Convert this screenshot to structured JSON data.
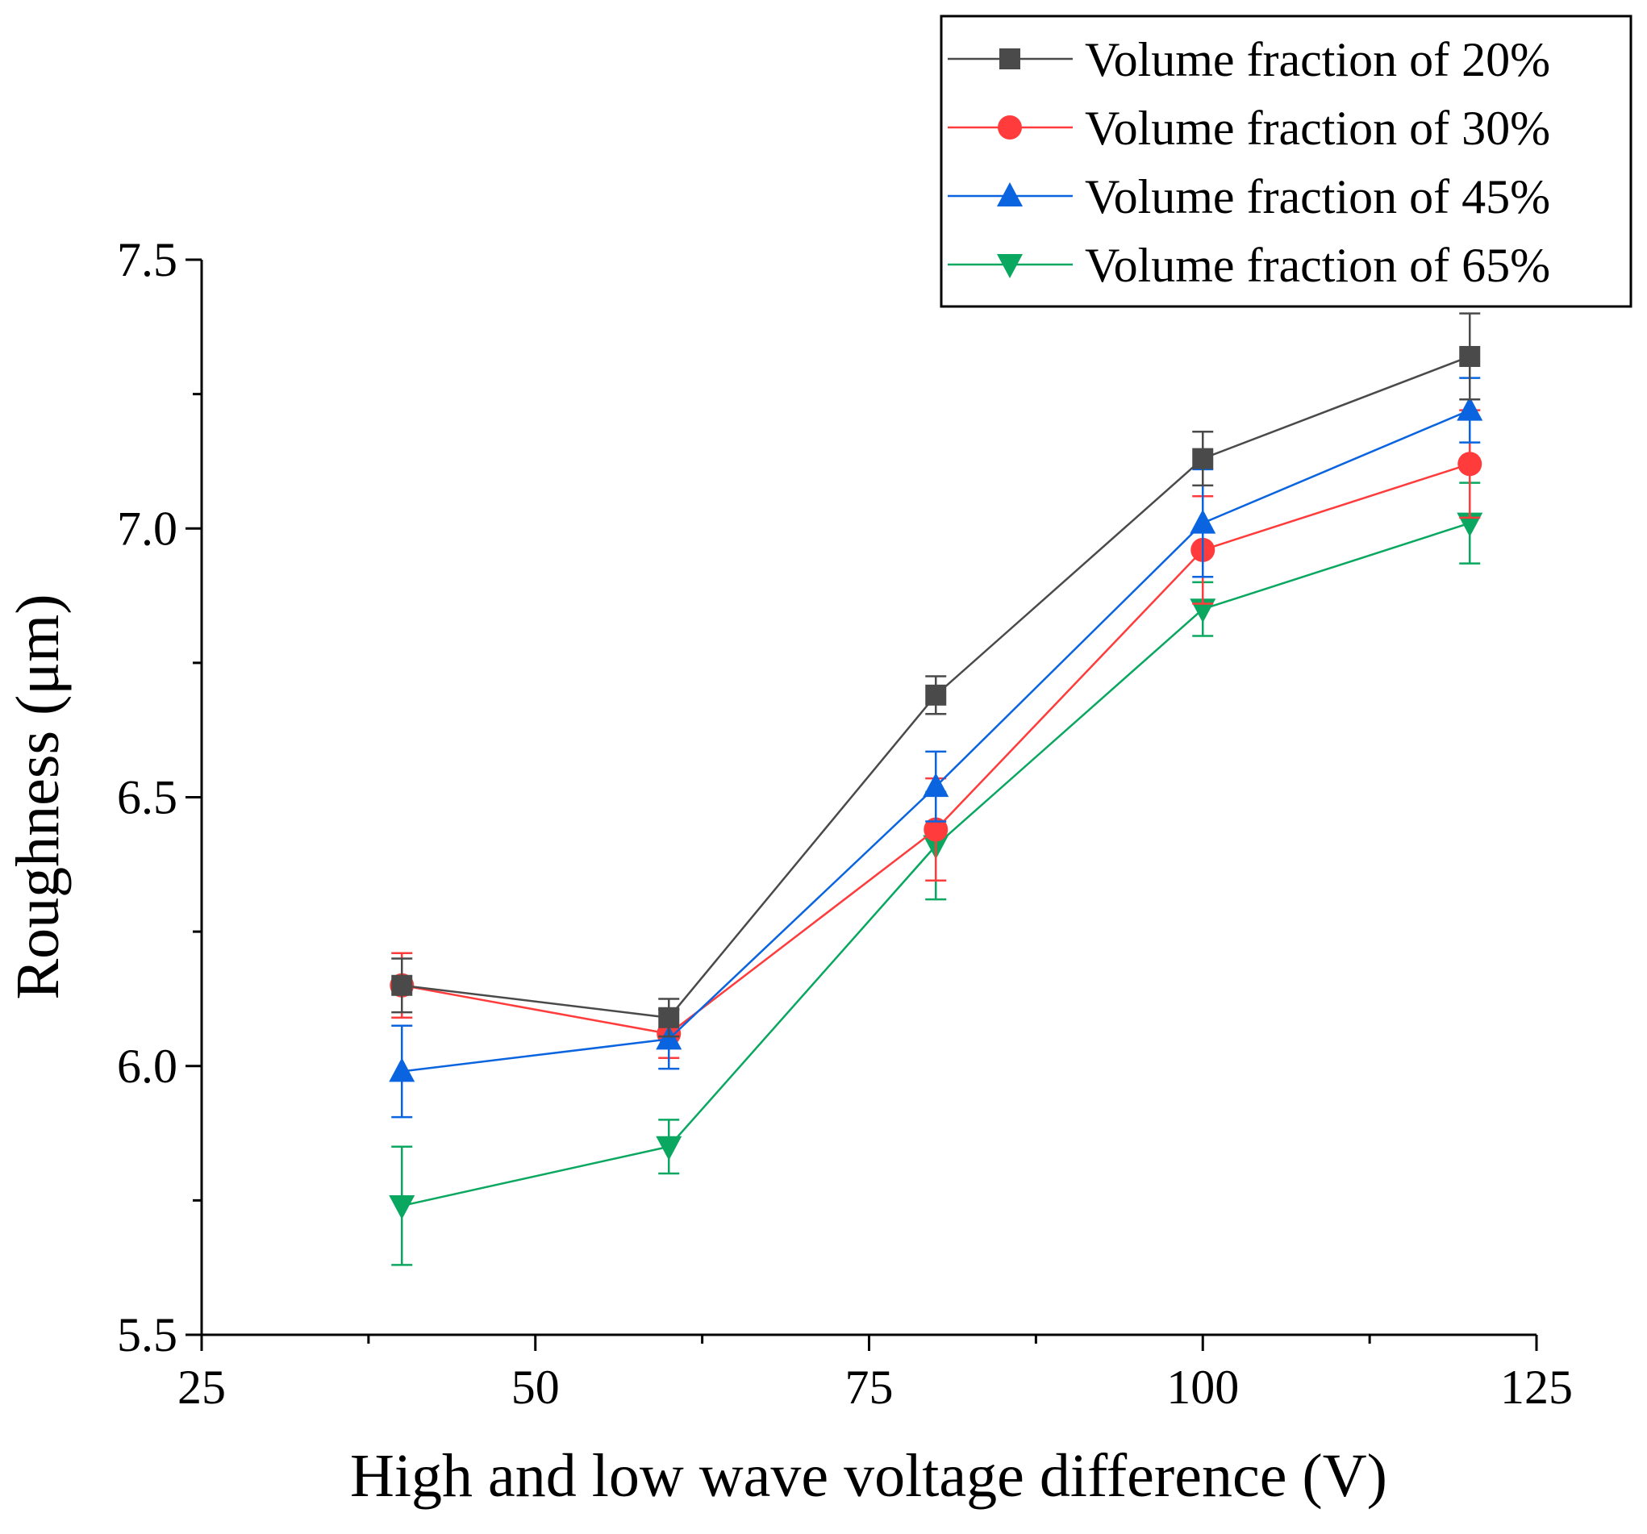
{
  "chart_data": {
    "type": "line",
    "title": "",
    "xlabel": "High and low wave voltage difference (V)",
    "ylabel": "Roughness (μm)",
    "xlim": [
      25,
      125
    ],
    "ylim": [
      5.5,
      7.5
    ],
    "xticks": [
      25,
      50,
      75,
      100,
      125
    ],
    "xtick_labels": [
      "25",
      "50",
      "75",
      "100",
      "125"
    ],
    "yticks": [
      5.5,
      6.0,
      6.5,
      7.0,
      7.5
    ],
    "ytick_labels": [
      "5.5",
      "6.0",
      "6.5",
      "7.0",
      "7.5"
    ],
    "x": [
      40,
      60,
      80,
      100,
      120
    ],
    "legend_position": "top-right",
    "series": [
      {
        "name": "Volume fraction of 20%",
        "color": "#4a4a4a",
        "marker": "square",
        "values": [
          6.15,
          6.09,
          6.69,
          7.13,
          7.32
        ],
        "errors": [
          0.05,
          0.035,
          0.035,
          0.05,
          0.08
        ]
      },
      {
        "name": "Volume fraction of 30%",
        "color": "#ff3b3b",
        "marker": "circle",
        "values": [
          6.15,
          6.06,
          6.44,
          6.96,
          7.12
        ],
        "errors": [
          0.06,
          0.045,
          0.095,
          0.1,
          0.1
        ]
      },
      {
        "name": "Volume fraction of 45%",
        "color": "#0a64e0",
        "marker": "triangle-up",
        "values": [
          5.99,
          6.05,
          6.52,
          7.01,
          7.22
        ],
        "errors": [
          0.085,
          0.055,
          0.065,
          0.1,
          0.06
        ]
      },
      {
        "name": "Volume fraction of 65%",
        "color": "#0aa760",
        "marker": "triangle-down",
        "values": [
          5.74,
          5.85,
          6.41,
          6.85,
          7.01
        ],
        "errors": [
          0.11,
          0.05,
          0.1,
          0.05,
          0.075
        ]
      }
    ]
  }
}
